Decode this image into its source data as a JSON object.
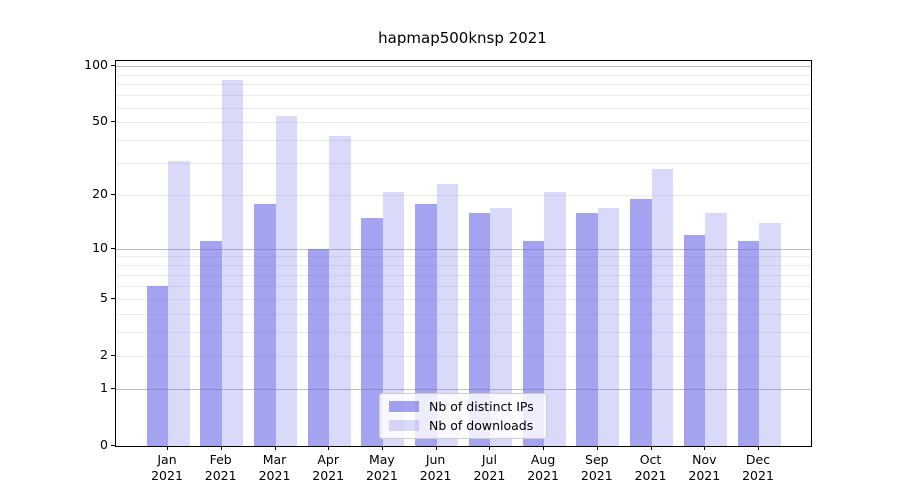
{
  "chart_data": {
    "type": "bar",
    "title": "hapmap500knsp 2021",
    "categories": [
      "Jan 2021",
      "Feb 2021",
      "Mar 2021",
      "Apr 2021",
      "May 2021",
      "Jun 2021",
      "Jul 2021",
      "Aug 2021",
      "Sep 2021",
      "Oct 2021",
      "Nov 2021",
      "Dec 2021"
    ],
    "x_tick_months": [
      "Jan",
      "Feb",
      "Mar",
      "Apr",
      "May",
      "Jun",
      "Jul",
      "Aug",
      "Sep",
      "Oct",
      "Nov",
      "Dec"
    ],
    "x_tick_year": "2021",
    "series": [
      {
        "name": "Nb of distinct IPs",
        "color": "#6666e6",
        "alpha": 0.6,
        "values": [
          6,
          11,
          18,
          10,
          15,
          18,
          16,
          11,
          16,
          19,
          12,
          11
        ]
      },
      {
        "name": "Nb of downloads",
        "color": "#6666e6",
        "alpha": 0.25,
        "values": [
          31,
          84,
          54,
          42,
          21,
          23,
          17,
          21,
          17,
          28,
          16,
          14
        ]
      }
    ],
    "yscale": "symlog",
    "ylabel": "",
    "xlabel": "",
    "ylim": [
      0,
      106
    ],
    "y_ticks": [
      0,
      1,
      2,
      5,
      10,
      20,
      50,
      100
    ],
    "y_gridlines_major": [
      1,
      10,
      100
    ],
    "y_gridlines_minor": [
      2,
      3,
      4,
      5,
      6,
      7,
      8,
      9,
      20,
      30,
      40,
      50,
      60,
      70,
      80,
      90
    ],
    "grid": "horizontal",
    "legend_position": "lower center"
  }
}
